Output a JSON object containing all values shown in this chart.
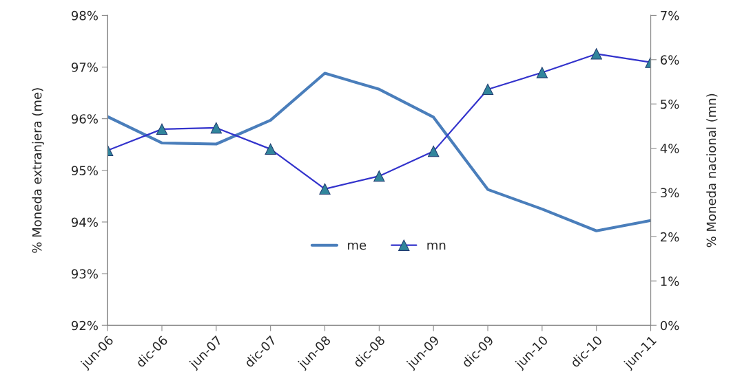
{
  "chart_data": {
    "type": "line",
    "categories": [
      "jun-06",
      "dic-06",
      "jun-07",
      "dic-07",
      "jun-08",
      "dic-08",
      "jun-09",
      "dic-09",
      "jun-10",
      "dic-10",
      "jun-11"
    ],
    "series": [
      {
        "name": "me",
        "color": "#4a7ebb",
        "marker": "none",
        "values": [
          96.04,
          95.53,
          95.51,
          95.97,
          96.88,
          96.57,
          96.03,
          94.63,
          94.25,
          93.83,
          94.03
        ]
      },
      {
        "name": "mn",
        "color": "#3333cc",
        "marker": "triangle",
        "axis": "y2",
        "values": [
          3.95,
          4.43,
          4.46,
          3.98,
          3.08,
          3.37,
          3.93,
          5.33,
          5.71,
          6.13,
          5.94
        ]
      }
    ],
    "ylabel": "% Moneda extranjera (me)",
    "y2label": "% Moneda nacional (mn)",
    "ylim": [
      92,
      98
    ],
    "yticks": [
      {
        "value": 92,
        "label": "92%"
      },
      {
        "value": 93,
        "label": "93%"
      },
      {
        "value": 94,
        "label": "94%"
      },
      {
        "value": 95,
        "label": "95%"
      },
      {
        "value": 96,
        "label": "96%"
      },
      {
        "value": 97,
        "label": "97%"
      },
      {
        "value": 98,
        "label": "98%"
      }
    ],
    "y2lim": [
      0,
      7
    ],
    "y2ticks": [
      {
        "value": 0,
        "label": "0%"
      },
      {
        "value": 1,
        "label": "1%"
      },
      {
        "value": 2,
        "label": "2%"
      },
      {
        "value": 3,
        "label": "3%"
      },
      {
        "value": 4,
        "label": "4%"
      },
      {
        "value": 5,
        "label": "5%"
      },
      {
        "value": 6,
        "label": "6%"
      },
      {
        "value": 7,
        "label": "7%"
      }
    ],
    "legend": "bottom",
    "grid": false
  }
}
